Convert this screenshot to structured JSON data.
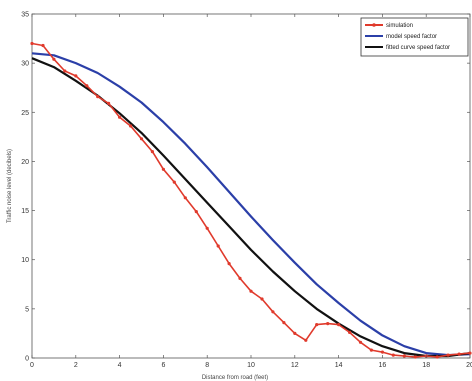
{
  "chart_data": {
    "type": "line",
    "title": "",
    "xlabel": "Distance from road (feet)",
    "ylabel": "Traffic noise level (decibels)",
    "xlim": [
      0,
      20
    ],
    "ylim": [
      0,
      35
    ],
    "xticks": [
      0,
      2,
      4,
      6,
      8,
      10,
      12,
      14,
      16,
      18,
      20
    ],
    "yticks": [
      0,
      5,
      10,
      15,
      20,
      25,
      30,
      35
    ],
    "ytick_labels": [
      "0",
      "5",
      "10",
      "15",
      "20",
      "25",
      "30",
      "35"
    ],
    "xtick_labels": [
      "0",
      "2",
      "4",
      "6",
      "8",
      "10",
      "12",
      "14",
      "16",
      "18",
      "20"
    ],
    "grid": false,
    "legend_position": "top-right",
    "series": [
      {
        "name": "simulation",
        "color": "#e03a2c",
        "marker": "circle",
        "x": [
          0.0,
          0.5,
          1.0,
          1.5,
          2.0,
          2.5,
          3.0,
          3.5,
          4.0,
          4.5,
          5.0,
          5.5,
          6.0,
          6.5,
          7.0,
          7.5,
          8.0,
          8.5,
          9.0,
          9.5,
          10.0,
          10.5,
          11.0,
          11.5,
          12.0,
          12.5,
          13.0,
          13.5,
          14.0,
          14.5,
          15.0,
          15.5,
          16.0,
          16.5,
          17.0,
          17.5,
          18.0,
          18.5,
          19.0,
          19.5,
          20.0
        ],
        "y": [
          32.0,
          31.8,
          30.4,
          29.2,
          28.7,
          27.7,
          26.6,
          25.9,
          24.5,
          23.6,
          22.3,
          21.0,
          19.2,
          17.9,
          16.3,
          14.9,
          13.2,
          11.4,
          9.6,
          8.1,
          6.8,
          6.0,
          4.7,
          3.6,
          2.5,
          1.8,
          3.4,
          3.5,
          3.4,
          2.6,
          1.6,
          0.8,
          0.6,
          0.3,
          0.2,
          0.1,
          0.2,
          0.1,
          0.3,
          0.4,
          0.5
        ]
      },
      {
        "name": "model speed factor",
        "color": "#2b3fa8",
        "x": [
          0,
          1,
          2,
          3,
          4,
          5,
          6,
          7,
          8,
          9,
          10,
          11,
          12,
          13,
          14,
          15,
          16,
          17,
          18,
          19,
          20
        ],
        "y": [
          31.0,
          30.8,
          30.0,
          29.0,
          27.6,
          26.0,
          24.0,
          21.8,
          19.4,
          16.9,
          14.4,
          12.0,
          9.7,
          7.5,
          5.6,
          3.8,
          2.3,
          1.2,
          0.5,
          0.3,
          0.4
        ]
      },
      {
        "name": "fitted curve speed factor",
        "color": "#111111",
        "x": [
          0,
          1,
          2,
          3,
          4,
          5,
          6,
          7,
          8,
          9,
          10,
          11,
          12,
          13,
          14,
          15,
          16,
          17,
          18,
          19,
          20
        ],
        "y": [
          30.5,
          29.6,
          28.2,
          26.7,
          24.9,
          22.9,
          20.6,
          18.2,
          15.8,
          13.4,
          11.0,
          8.8,
          6.8,
          5.0,
          3.5,
          2.2,
          1.2,
          0.5,
          0.2,
          0.2,
          0.5
        ]
      }
    ]
  }
}
